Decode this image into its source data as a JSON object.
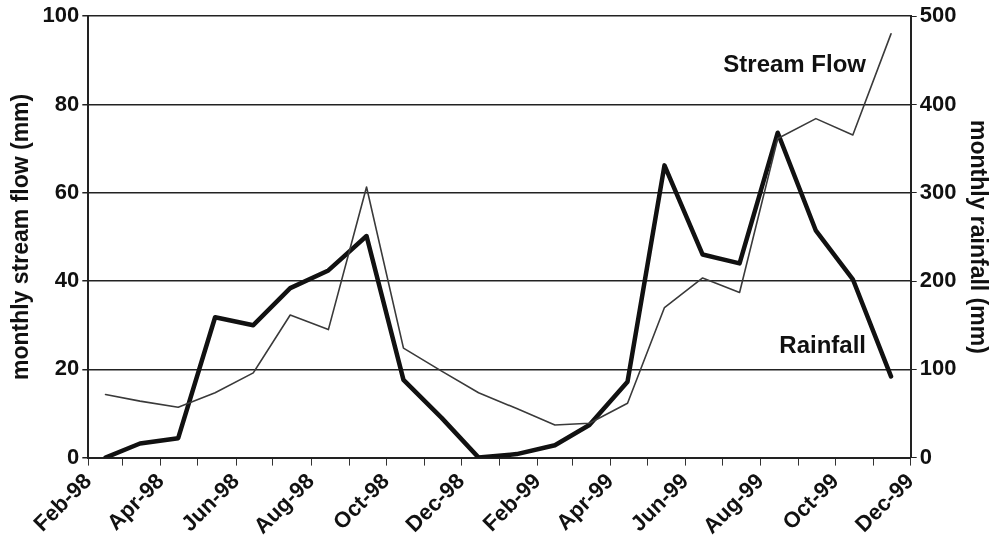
{
  "chart_data": {
    "type": "line",
    "x": [
      "1998-02-15",
      "1998-03-15",
      "1998-04-15",
      "1998-05-15",
      "1998-06-15",
      "1998-07-15",
      "1998-08-15",
      "1998-09-15",
      "1998-10-15",
      "1998-11-15",
      "1998-12-15",
      "1999-01-15",
      "1999-02-15",
      "1999-03-15",
      "1999-04-15",
      "1999-05-15",
      "1999-06-15",
      "1999-07-15",
      "1999-08-15",
      "1999-09-15",
      "1999-10-15",
      "1999-11-15"
    ],
    "series": [
      {
        "name": "Stream Flow",
        "color": "#3a3a3a",
        "values": [
          14.3,
          12.8,
          11.4,
          14.7,
          19.2,
          32.3,
          29.0,
          61.3,
          24.8,
          19.6,
          14.7,
          11.1,
          7.4,
          7.8,
          12.3,
          34.0,
          40.7,
          37.4,
          72.3,
          76.8,
          73.1,
          96.0
        ]
      },
      {
        "name": "Rainfall",
        "color": "#111111",
        "axis": "y2",
        "values": [
          0,
          16,
          22,
          159,
          150,
          192,
          212,
          251,
          88,
          45,
          0,
          4,
          14,
          37,
          86,
          331,
          230,
          220,
          368,
          257,
          202,
          92
        ]
      }
    ],
    "ylabel": "monthly stream flow (mm)",
    "y2label": "monthly rainfall (mm)",
    "xlim": [
      "1998-02-01",
      "1999-12-01"
    ],
    "xticks": [
      {
        "value": "1998-02-01",
        "label": "Feb-98"
      },
      {
        "value": "1998-03-01",
        "label": null
      },
      {
        "value": "1998-04-01",
        "label": "Apr-98"
      },
      {
        "value": "1998-05-01",
        "label": null
      },
      {
        "value": "1998-06-01",
        "label": "Jun-98"
      },
      {
        "value": "1998-07-01",
        "label": null
      },
      {
        "value": "1998-08-01",
        "label": "Aug-98"
      },
      {
        "value": "1998-09-01",
        "label": null
      },
      {
        "value": "1998-10-01",
        "label": "Oct-98"
      },
      {
        "value": "1998-11-01",
        "label": null
      },
      {
        "value": "1998-12-01",
        "label": "Dec-98"
      },
      {
        "value": "1999-01-01",
        "label": null
      },
      {
        "value": "1999-02-01",
        "label": "Feb-99"
      },
      {
        "value": "1999-03-01",
        "label": null
      },
      {
        "value": "1999-04-01",
        "label": "Apr-99"
      },
      {
        "value": "1999-05-01",
        "label": null
      },
      {
        "value": "1999-06-01",
        "label": "Jun-99"
      },
      {
        "value": "1999-07-01",
        "label": null
      },
      {
        "value": "1999-08-01",
        "label": "Aug-99"
      },
      {
        "value": "1999-09-01",
        "label": null
      },
      {
        "value": "1999-10-01",
        "label": "Oct-99"
      },
      {
        "value": "1999-11-01",
        "label": null
      },
      {
        "value": "1999-12-01",
        "label": "Dec-99"
      }
    ],
    "ylim": [
      0,
      100
    ],
    "yticks": [
      0,
      20,
      40,
      60,
      80,
      100
    ],
    "y2lim": [
      0,
      500
    ],
    "y2ticks": [
      0,
      100,
      200,
      300,
      400,
      500
    ],
    "grid": "y",
    "legend": false,
    "marker": "none",
    "line_style": "solid"
  }
}
